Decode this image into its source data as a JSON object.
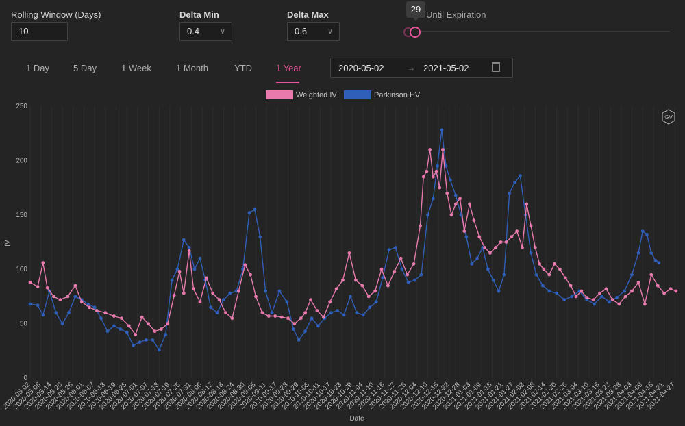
{
  "controls": {
    "rolling_window": {
      "label": "Rolling Window (Days)",
      "value": "10"
    },
    "delta_min": {
      "label": "Delta Min",
      "value": "0.4"
    },
    "delta_max": {
      "label": "Delta Max",
      "value": "0.6"
    },
    "expiration": {
      "label": "Until Expiration",
      "value": "29"
    }
  },
  "tabs": [
    "1 Day",
    "5 Day",
    "1 Week",
    "1 Month",
    "YTD",
    "1 Year"
  ],
  "active_tab": "1 Year",
  "date_range": {
    "start": "2020-05-02",
    "separator": "→",
    "end": "2021-05-02"
  },
  "colors": {
    "accent": "#e8559a",
    "weighted_iv": "#e87aae",
    "parkinson_hv": "#2f5fb8"
  },
  "chart_data": {
    "type": "line",
    "title": "",
    "xlabel": "Date",
    "ylabel": "IV",
    "ylim": [
      0,
      250
    ],
    "yticks": [
      0,
      50,
      100,
      150,
      200,
      250
    ],
    "grid": "vertical",
    "legend_position": "top-center",
    "badge": "GV",
    "x_ticks": [
      "2020-05-02",
      "2020-05-08",
      "2020-05-14",
      "2020-05-20",
      "2020-05-26",
      "2020-06-01",
      "2020-06-07",
      "2020-06-13",
      "2020-06-19",
      "2020-06-25",
      "2020-07-01",
      "2020-07-07",
      "2020-07-13",
      "2020-07-19",
      "2020-07-25",
      "2020-07-31",
      "2020-08-06",
      "2020-08-12",
      "2020-08-18",
      "2020-08-24",
      "2020-08-30",
      "2020-09-05",
      "2020-09-11",
      "2020-09-17",
      "2020-09-23",
      "2020-09-29",
      "2020-10-05",
      "2020-10-11",
      "2020-10-17",
      "2020-10-23",
      "2020-10-29",
      "2020-11-04",
      "2020-11-10",
      "2020-11-16",
      "2020-11-22",
      "2020-11-28",
      "2020-12-04",
      "2020-12-10",
      "2020-12-16",
      "2020-12-22",
      "2020-12-28",
      "2021-01-03",
      "2021-01-09",
      "2021-01-15",
      "2021-01-21",
      "2021-01-27",
      "2021-02-02",
      "2021-02-08",
      "2021-02-14",
      "2021-02-20",
      "2021-02-26",
      "2021-03-04",
      "2021-03-10",
      "2021-03-16",
      "2021-03-22",
      "2021-03-28",
      "2021-04-03",
      "2021-04-09",
      "2021-04-15",
      "2021-04-21",
      "2021-04-27"
    ],
    "series": [
      {
        "name": "Weighted IV",
        "color": "#e87aae",
        "values": [
          [
            0,
            88
          ],
          [
            7,
            84
          ],
          [
            12,
            106
          ],
          [
            16,
            83
          ],
          [
            22,
            75
          ],
          [
            28,
            72
          ],
          [
            35,
            75
          ],
          [
            42,
            85
          ],
          [
            48,
            70
          ],
          [
            55,
            65
          ],
          [
            62,
            62
          ],
          [
            70,
            60
          ],
          [
            78,
            57
          ],
          [
            85,
            55
          ],
          [
            92,
            48
          ],
          [
            98,
            40
          ],
          [
            104,
            56
          ],
          [
            110,
            50
          ],
          [
            116,
            43
          ],
          [
            122,
            45
          ],
          [
            128,
            50
          ],
          [
            134,
            76
          ],
          [
            139,
            98
          ],
          [
            143,
            78
          ],
          [
            148,
            117
          ],
          [
            152,
            82
          ],
          [
            158,
            70
          ],
          [
            164,
            92
          ],
          [
            170,
            78
          ],
          [
            176,
            72
          ],
          [
            182,
            60
          ],
          [
            188,
            55
          ],
          [
            194,
            80
          ],
          [
            200,
            104
          ],
          [
            205,
            95
          ],
          [
            210,
            75
          ],
          [
            216,
            60
          ],
          [
            222,
            57
          ],
          [
            228,
            57
          ],
          [
            234,
            56
          ],
          [
            240,
            55
          ],
          [
            246,
            50
          ],
          [
            252,
            55
          ],
          [
            256,
            60
          ],
          [
            261,
            72
          ],
          [
            267,
            62
          ],
          [
            273,
            56
          ],
          [
            279,
            70
          ],
          [
            285,
            82
          ],
          [
            291,
            90
          ],
          [
            297,
            115
          ],
          [
            303,
            90
          ],
          [
            309,
            85
          ],
          [
            315,
            75
          ],
          [
            321,
            80
          ],
          [
            327,
            100
          ],
          [
            333,
            85
          ],
          [
            339,
            98
          ],
          [
            345,
            110
          ],
          [
            351,
            95
          ],
          [
            357,
            105
          ],
          [
            363,
            140
          ],
          [
            366,
            185
          ],
          [
            369,
            190
          ],
          [
            372,
            210
          ],
          [
            375,
            185
          ],
          [
            378,
            190
          ],
          [
            381,
            175
          ],
          [
            384,
            210
          ],
          [
            388,
            170
          ],
          [
            392,
            150
          ],
          [
            396,
            160
          ],
          [
            400,
            165
          ],
          [
            404,
            135
          ],
          [
            409,
            160
          ],
          [
            413,
            145
          ],
          [
            418,
            130
          ],
          [
            423,
            120
          ],
          [
            428,
            115
          ],
          [
            433,
            120
          ],
          [
            438,
            125
          ],
          [
            443,
            125
          ],
          [
            448,
            130
          ],
          [
            453,
            135
          ],
          [
            458,
            120
          ],
          [
            462,
            160
          ],
          [
            466,
            140
          ],
          [
            470,
            120
          ],
          [
            474,
            105
          ],
          [
            478,
            100
          ],
          [
            483,
            95
          ],
          [
            488,
            105
          ],
          [
            493,
            100
          ],
          [
            498,
            92
          ],
          [
            503,
            85
          ],
          [
            508,
            75
          ],
          [
            513,
            80
          ],
          [
            518,
            74
          ],
          [
            524,
            72
          ],
          [
            530,
            78
          ],
          [
            536,
            82
          ],
          [
            542,
            72
          ],
          [
            548,
            68
          ],
          [
            554,
            75
          ],
          [
            560,
            80
          ],
          [
            566,
            88
          ],
          [
            572,
            68
          ],
          [
            578,
            95
          ],
          [
            584,
            85
          ],
          [
            590,
            78
          ],
          [
            596,
            82
          ],
          [
            601,
            80
          ]
        ]
      },
      {
        "name": "Parkinson HV",
        "color": "#2f5fb8",
        "values": [
          [
            0,
            68
          ],
          [
            7,
            67
          ],
          [
            12,
            58
          ],
          [
            18,
            80
          ],
          [
            24,
            60
          ],
          [
            30,
            50
          ],
          [
            36,
            60
          ],
          [
            42,
            75
          ],
          [
            48,
            72
          ],
          [
            54,
            68
          ],
          [
            60,
            65
          ],
          [
            66,
            55
          ],
          [
            72,
            43
          ],
          [
            78,
            48
          ],
          [
            84,
            45
          ],
          [
            90,
            42
          ],
          [
            96,
            30
          ],
          [
            102,
            33
          ],
          [
            108,
            35
          ],
          [
            114,
            35
          ],
          [
            120,
            26
          ],
          [
            126,
            40
          ],
          [
            132,
            90
          ],
          [
            137,
            100
          ],
          [
            143,
            127
          ],
          [
            148,
            120
          ],
          [
            153,
            100
          ],
          [
            158,
            110
          ],
          [
            163,
            90
          ],
          [
            168,
            65
          ],
          [
            174,
            60
          ],
          [
            180,
            72
          ],
          [
            186,
            78
          ],
          [
            192,
            80
          ],
          [
            198,
            100
          ],
          [
            204,
            152
          ],
          [
            209,
            155
          ],
          [
            214,
            130
          ],
          [
            219,
            80
          ],
          [
            225,
            60
          ],
          [
            232,
            80
          ],
          [
            239,
            70
          ],
          [
            245,
            45
          ],
          [
            250,
            35
          ],
          [
            256,
            43
          ],
          [
            262,
            55
          ],
          [
            268,
            48
          ],
          [
            274,
            55
          ],
          [
            280,
            60
          ],
          [
            286,
            62
          ],
          [
            292,
            58
          ],
          [
            298,
            75
          ],
          [
            304,
            60
          ],
          [
            310,
            58
          ],
          [
            316,
            65
          ],
          [
            322,
            70
          ],
          [
            328,
            92
          ],
          [
            334,
            118
          ],
          [
            340,
            120
          ],
          [
            346,
            100
          ],
          [
            352,
            88
          ],
          [
            358,
            90
          ],
          [
            364,
            95
          ],
          [
            370,
            150
          ],
          [
            375,
            165
          ],
          [
            379,
            195
          ],
          [
            383,
            228
          ],
          [
            387,
            195
          ],
          [
            391,
            182
          ],
          [
            396,
            168
          ],
          [
            401,
            150
          ],
          [
            406,
            130
          ],
          [
            411,
            105
          ],
          [
            416,
            110
          ],
          [
            421,
            120
          ],
          [
            426,
            100
          ],
          [
            431,
            90
          ],
          [
            436,
            80
          ],
          [
            441,
            95
          ],
          [
            446,
            170
          ],
          [
            451,
            180
          ],
          [
            456,
            186
          ],
          [
            461,
            150
          ],
          [
            466,
            115
          ],
          [
            471,
            95
          ],
          [
            477,
            85
          ],
          [
            483,
            80
          ],
          [
            490,
            78
          ],
          [
            497,
            72
          ],
          [
            504,
            75
          ],
          [
            511,
            80
          ],
          [
            518,
            72
          ],
          [
            525,
            68
          ],
          [
            532,
            75
          ],
          [
            539,
            70
          ],
          [
            546,
            74
          ],
          [
            553,
            80
          ],
          [
            560,
            95
          ],
          [
            566,
            115
          ],
          [
            570,
            135
          ],
          [
            574,
            132
          ],
          [
            578,
            115
          ],
          [
            582,
            108
          ],
          [
            585,
            106
          ]
        ]
      }
    ]
  }
}
